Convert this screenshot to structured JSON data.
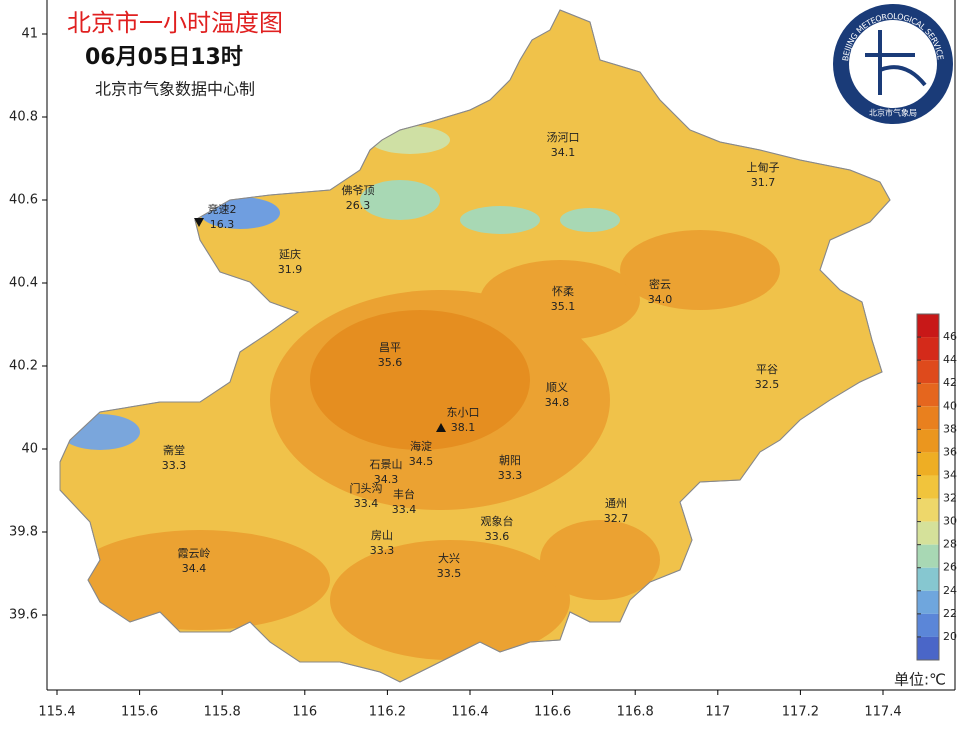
{
  "header": {
    "title": "北京市一小时温度图",
    "time": "06月05日13时",
    "source": "北京市气象数据中心制"
  },
  "logo": {
    "text_en": "BEIJING METEOROLOGICAL SERVICE",
    "text_cn": "北京市气象局"
  },
  "stations": [
    {
      "name": "竞速2",
      "value": "16.3"
    },
    {
      "name": "佛爷顶",
      "value": "26.3"
    },
    {
      "name": "延庆",
      "value": "31.9"
    },
    {
      "name": "汤河口",
      "value": "34.1"
    },
    {
      "name": "上甸子",
      "value": "31.7"
    },
    {
      "name": "怀柔",
      "value": "35.1"
    },
    {
      "name": "密云",
      "value": "34.0"
    },
    {
      "name": "昌平",
      "value": "35.6"
    },
    {
      "name": "平谷",
      "value": "32.5"
    },
    {
      "name": "顺义",
      "value": "34.8"
    },
    {
      "name": "东小口",
      "value": "38.1"
    },
    {
      "name": "海淀",
      "value": "34.5"
    },
    {
      "name": "斋堂",
      "value": "33.3"
    },
    {
      "name": "朝阳",
      "value": "33.3"
    },
    {
      "name": "石景山",
      "value": "34.3"
    },
    {
      "name": "门头沟",
      "value": "33.4"
    },
    {
      "name": "丰台",
      "value": "33.4"
    },
    {
      "name": "通州",
      "value": "32.7"
    },
    {
      "name": "观象台",
      "value": "33.6"
    },
    {
      "name": "房山",
      "value": "33.3"
    },
    {
      "name": "霞云岭",
      "value": "34.4"
    },
    {
      "name": "大兴",
      "value": "33.5"
    }
  ],
  "xticks": [
    115.4,
    115.6,
    115.8,
    116,
    116.2,
    116.4,
    116.6,
    116.8,
    117,
    117.2,
    117.4
  ],
  "yticks": [
    39.6,
    39.8,
    40,
    40.2,
    40.4,
    40.6,
    40.8,
    41
  ],
  "legend": {
    "ticks": [
      46,
      44,
      42,
      40,
      38,
      36,
      34,
      32,
      30,
      28,
      26,
      24,
      22,
      20
    ],
    "colors": [
      "#c81818",
      "#d42a1a",
      "#de4a1c",
      "#e5661e",
      "#e9801e",
      "#eb961e",
      "#eeae24",
      "#f1c43c",
      "#eed76a",
      "#d5e19a",
      "#a8d8b4",
      "#86c7d0",
      "#6fa6dd",
      "#5b86d8",
      "#4a66c8"
    ],
    "unit": "单位:℃"
  }
}
